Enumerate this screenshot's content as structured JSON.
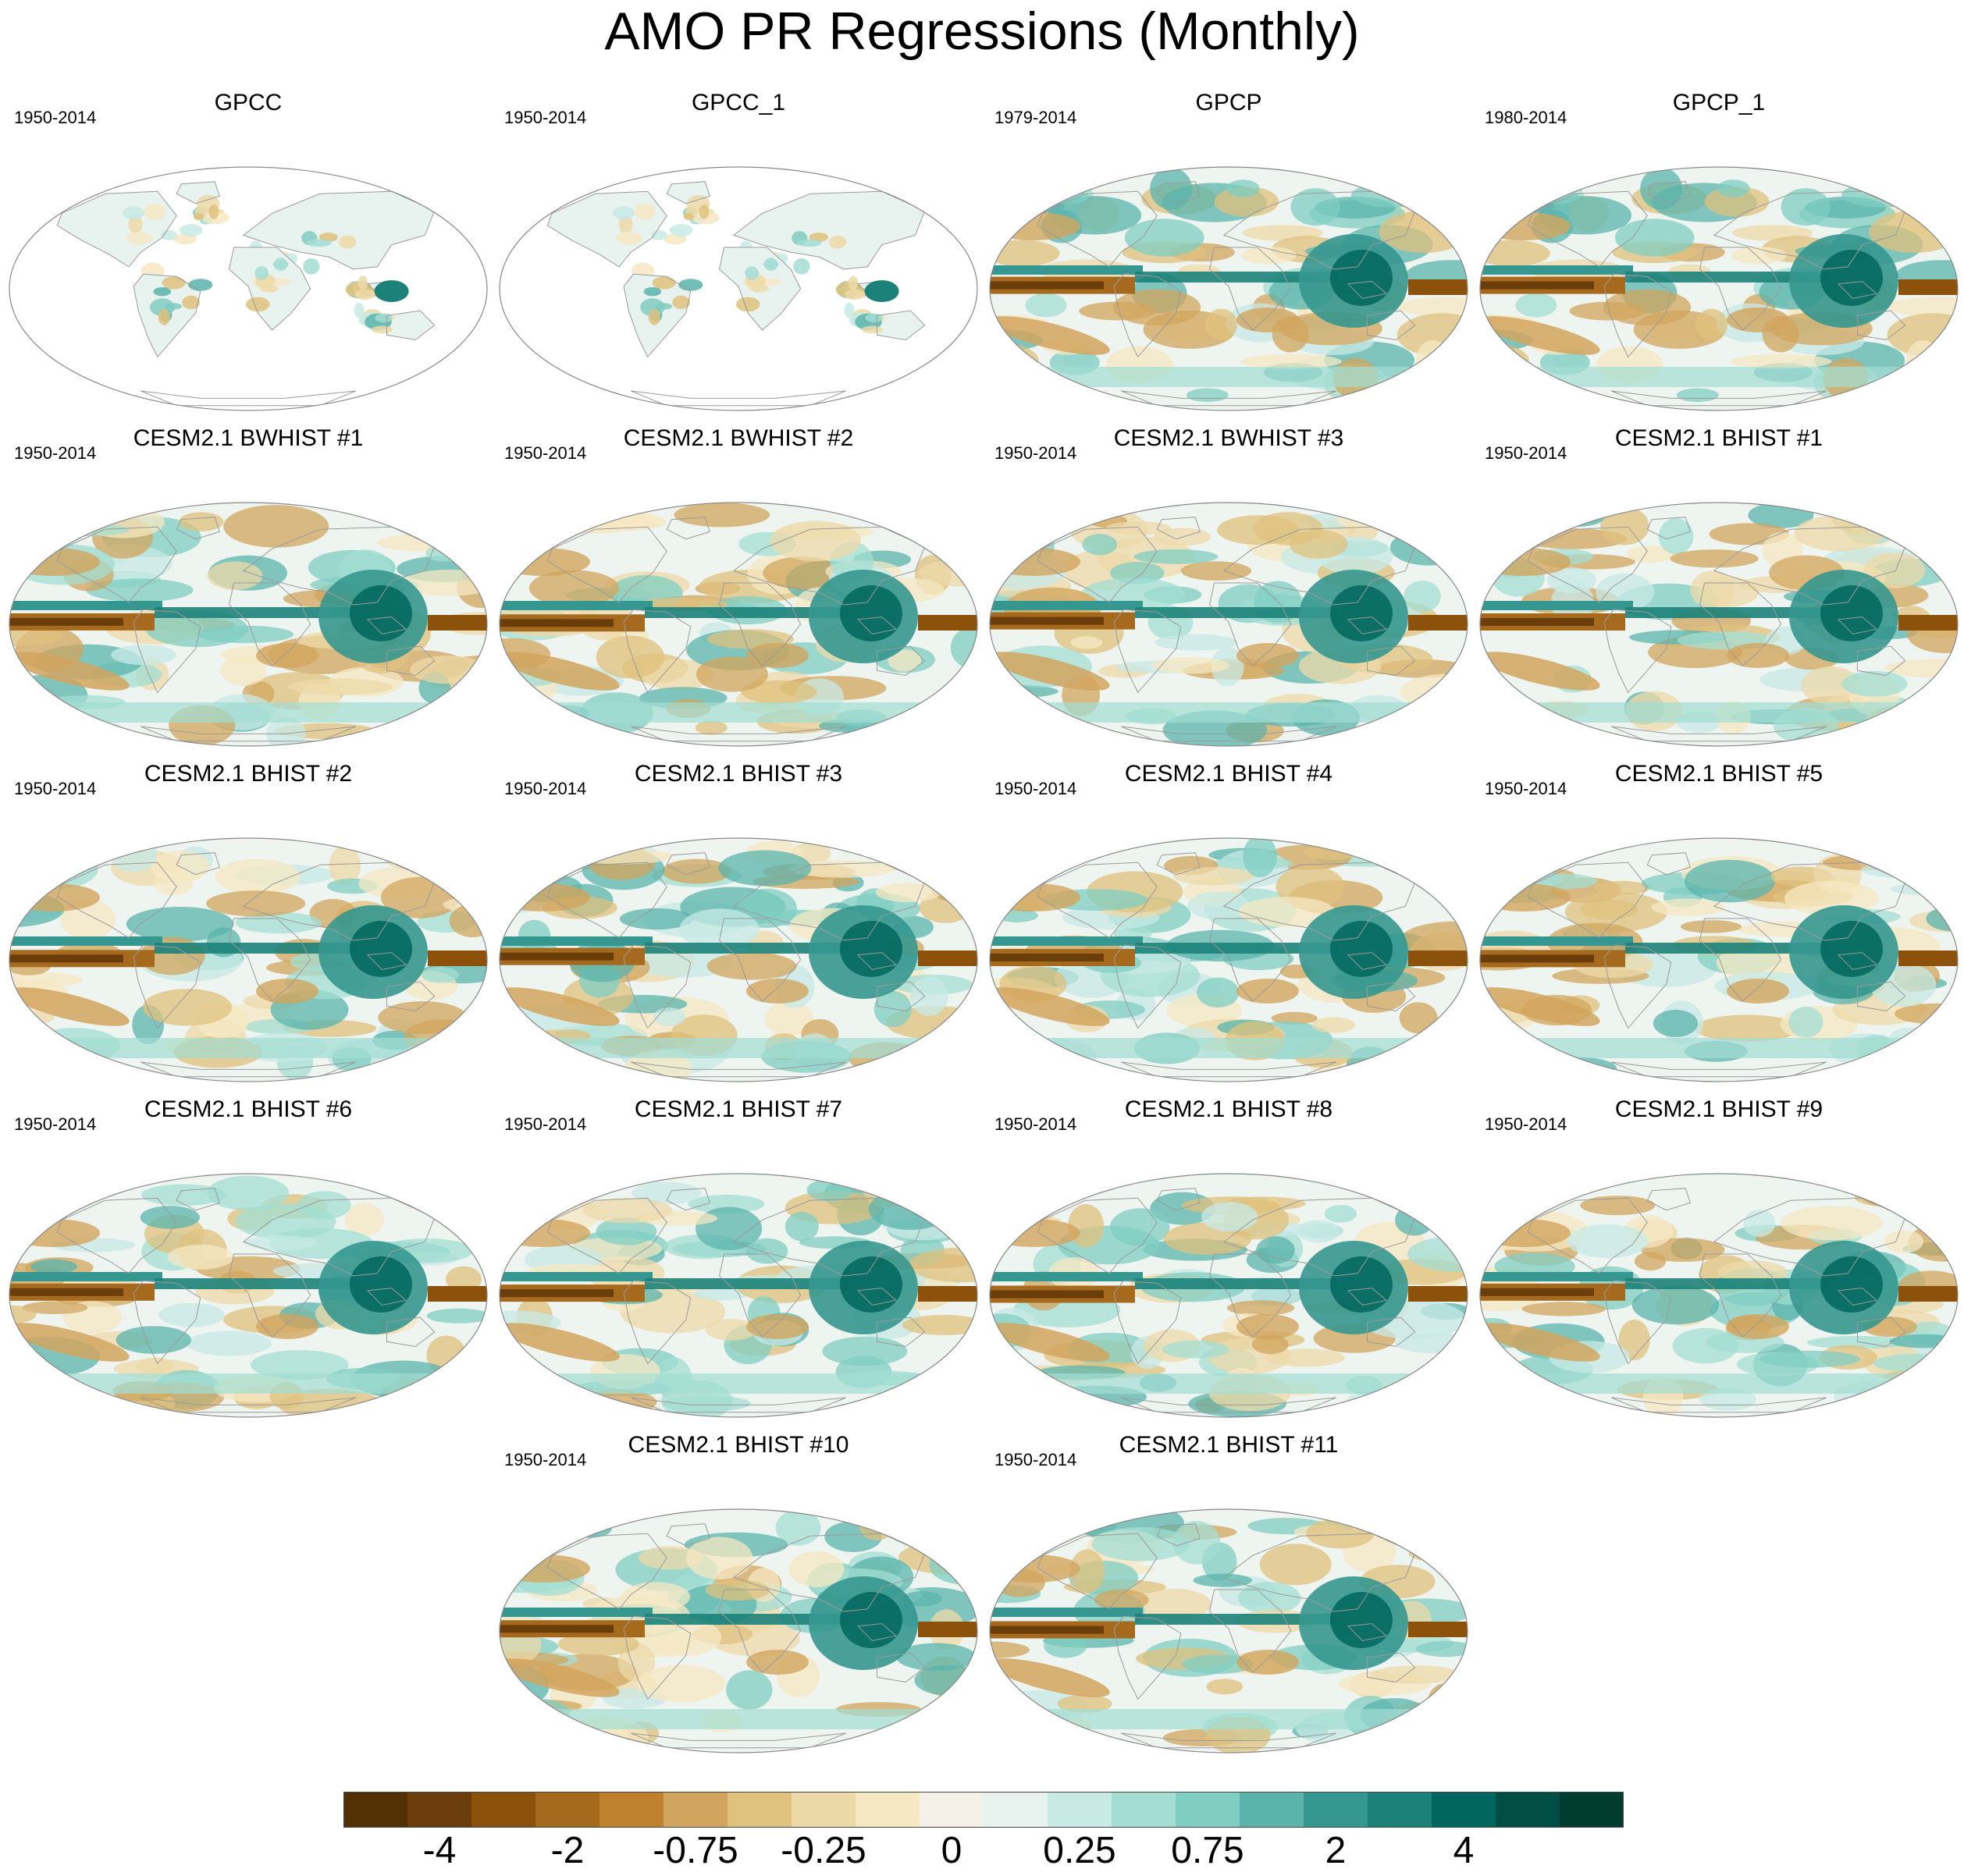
{
  "title": "AMO PR Regressions (Monthly)",
  "panels": [
    {
      "title": "GPCC",
      "period": "1950-2014",
      "coverage": "land",
      "pattern": 0
    },
    {
      "title": "GPCC_1",
      "period": "1950-2014",
      "coverage": "land",
      "pattern": 0
    },
    {
      "title": "GPCP",
      "period": "1979-2014",
      "coverage": "global",
      "pattern": 1
    },
    {
      "title": "GPCP_1",
      "period": "1980-2014",
      "coverage": "global",
      "pattern": 1
    },
    {
      "title": "CESM2.1 BWHIST #1",
      "period": "1950-2014",
      "coverage": "global",
      "pattern": 2
    },
    {
      "title": "CESM2.1 BWHIST #2",
      "period": "1950-2014",
      "coverage": "global",
      "pattern": 3
    },
    {
      "title": "CESM2.1 BWHIST #3",
      "period": "1950-2014",
      "coverage": "global",
      "pattern": 4
    },
    {
      "title": "CESM2.1 BHIST #1",
      "period": "1950-2014",
      "coverage": "global",
      "pattern": 5
    },
    {
      "title": "CESM2.1 BHIST #2",
      "period": "1950-2014",
      "coverage": "global",
      "pattern": 6
    },
    {
      "title": "CESM2.1 BHIST #3",
      "period": "1950-2014",
      "coverage": "global",
      "pattern": 7
    },
    {
      "title": "CESM2.1 BHIST #4",
      "period": "1950-2014",
      "coverage": "global",
      "pattern": 8
    },
    {
      "title": "CESM2.1 BHIST #5",
      "period": "1950-2014",
      "coverage": "global",
      "pattern": 9
    },
    {
      "title": "CESM2.1 BHIST #6",
      "period": "1950-2014",
      "coverage": "global",
      "pattern": 10
    },
    {
      "title": "CESM2.1 BHIST #7",
      "period": "1950-2014",
      "coverage": "global",
      "pattern": 11
    },
    {
      "title": "CESM2.1 BHIST #8",
      "period": "1950-2014",
      "coverage": "global",
      "pattern": 12
    },
    {
      "title": "CESM2.1 BHIST #9",
      "period": "1950-2014",
      "coverage": "global",
      "pattern": 13
    },
    {
      "title": "CESM2.1 BHIST #10",
      "period": "1950-2014",
      "coverage": "global",
      "pattern": 14
    },
    {
      "title": "CESM2.1 BHIST #11",
      "period": "1950-2014",
      "coverage": "global",
      "pattern": 15
    }
  ],
  "colorbar": {
    "colors": [
      "#543005",
      "#6b3d0a",
      "#8c510a",
      "#a66a1e",
      "#bf812d",
      "#d2a55e",
      "#dfc27d",
      "#ecd9a8",
      "#f6e8c3",
      "#f5f1e8",
      "#e8f2ef",
      "#c7eae5",
      "#a3ddd3",
      "#80cdc1",
      "#5ab4ac",
      "#35978f",
      "#1c8279",
      "#01665e",
      "#014e44",
      "#003c30"
    ],
    "labels": [
      "-4",
      "-2",
      "-0.75",
      "-0.25",
      "0",
      "0.25",
      "0.75",
      "2",
      "4"
    ],
    "label_boundaries": [
      2,
      4,
      6,
      8,
      10,
      12,
      14,
      16,
      18
    ]
  }
}
